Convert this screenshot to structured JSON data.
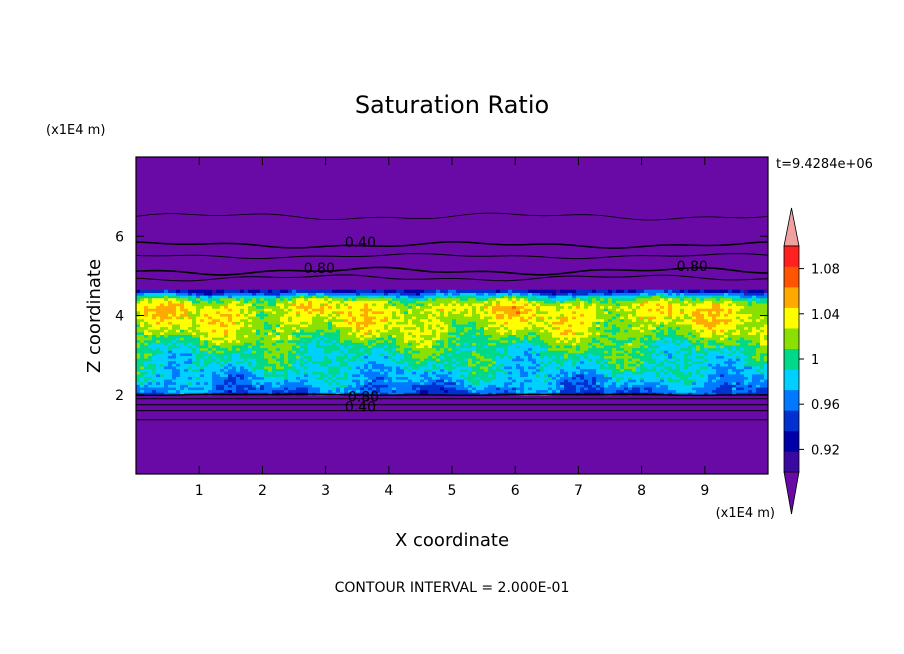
{
  "chart_data": {
    "type": "heatmap",
    "title": "Saturation Ratio",
    "xlabel": "X coordinate",
    "ylabel": "Z coordinate",
    "x_unit": "(x1E4 m)",
    "y_unit": "(x1E4 m)",
    "time_label": "t=9.4284e+06",
    "footer": "CONTOUR INTERVAL = 2.000E-01",
    "xlim": [
      0,
      10
    ],
    "ylim": [
      0,
      8
    ],
    "x_ticks": [
      "1",
      "2",
      "3",
      "4",
      "5",
      "6",
      "7",
      "8",
      "9"
    ],
    "y_ticks": [
      "2",
      "4",
      "6"
    ],
    "x_tick_values": [
      1,
      2,
      3,
      4,
      5,
      6,
      7,
      8,
      9
    ],
    "y_tick_values": [
      2,
      4,
      6
    ],
    "colorbar": {
      "levels": [
        0.9,
        0.92,
        0.94,
        0.96,
        0.98,
        1.0,
        1.02,
        1.04,
        1.06,
        1.08,
        1.1
      ],
      "colors": [
        "#3a0aa0",
        "#0000a8",
        "#0030d0",
        "#0078ff",
        "#00d0ff",
        "#00d88a",
        "#8ae000",
        "#ffff00",
        "#ffaa00",
        "#ff5500",
        "#ff2020"
      ],
      "under_color": "#6a0aa6",
      "over_color": "#f0a0a0",
      "labels": [
        "0.92",
        "0.96",
        "1",
        "1.04",
        "1.08"
      ],
      "label_values": [
        0.92,
        0.96,
        1.0,
        1.04,
        1.08
      ]
    },
    "contour_labels": [
      {
        "text": "0.40",
        "x": 3.55,
        "z": 5.85
      },
      {
        "text": "0.80",
        "x": 2.9,
        "z": 5.2
      },
      {
        "text": "0.80",
        "x": 8.8,
        "z": 5.25
      },
      {
        "text": "0.80",
        "x": 3.6,
        "z": 1.95
      },
      {
        "text": "0.40",
        "x": 3.55,
        "z": 1.7
      }
    ],
    "contour_levels": [
      {
        "z": 6.5,
        "amp": 0.06,
        "width": 0.8
      },
      {
        "z": 5.78,
        "amp": 0.05,
        "width": 1.5
      },
      {
        "z": 5.5,
        "amp": 0.04,
        "width": 1
      },
      {
        "z": 5.12,
        "amp": 0.06,
        "width": 1.6
      },
      {
        "z": 4.95,
        "amp": 0.05,
        "width": 1
      },
      {
        "z": 2.0,
        "amp": 0.01,
        "width": 1.4
      },
      {
        "z": 1.9,
        "amp": 0.0,
        "width": 1
      },
      {
        "z": 1.75,
        "amp": 0.0,
        "width": 1
      },
      {
        "z": 1.6,
        "amp": 0.0,
        "width": 1
      },
      {
        "z": 1.37,
        "amp": 0.0,
        "width": 1
      }
    ],
    "field_profile": [
      {
        "z": 2.0,
        "value": 0.95
      },
      {
        "z": 2.1,
        "value": 0.965
      },
      {
        "z": 2.4,
        "value": 0.985
      },
      {
        "z": 2.8,
        "value": 1.0
      },
      {
        "z": 3.2,
        "value": 1.01
      },
      {
        "z": 3.6,
        "value": 1.035
      },
      {
        "z": 3.9,
        "value": 1.045
      },
      {
        "z": 4.2,
        "value": 1.05
      },
      {
        "z": 4.4,
        "value": 1.03
      },
      {
        "z": 4.55,
        "value": 0.97
      },
      {
        "z": 4.65,
        "value": 0.93
      }
    ],
    "grid": false
  }
}
